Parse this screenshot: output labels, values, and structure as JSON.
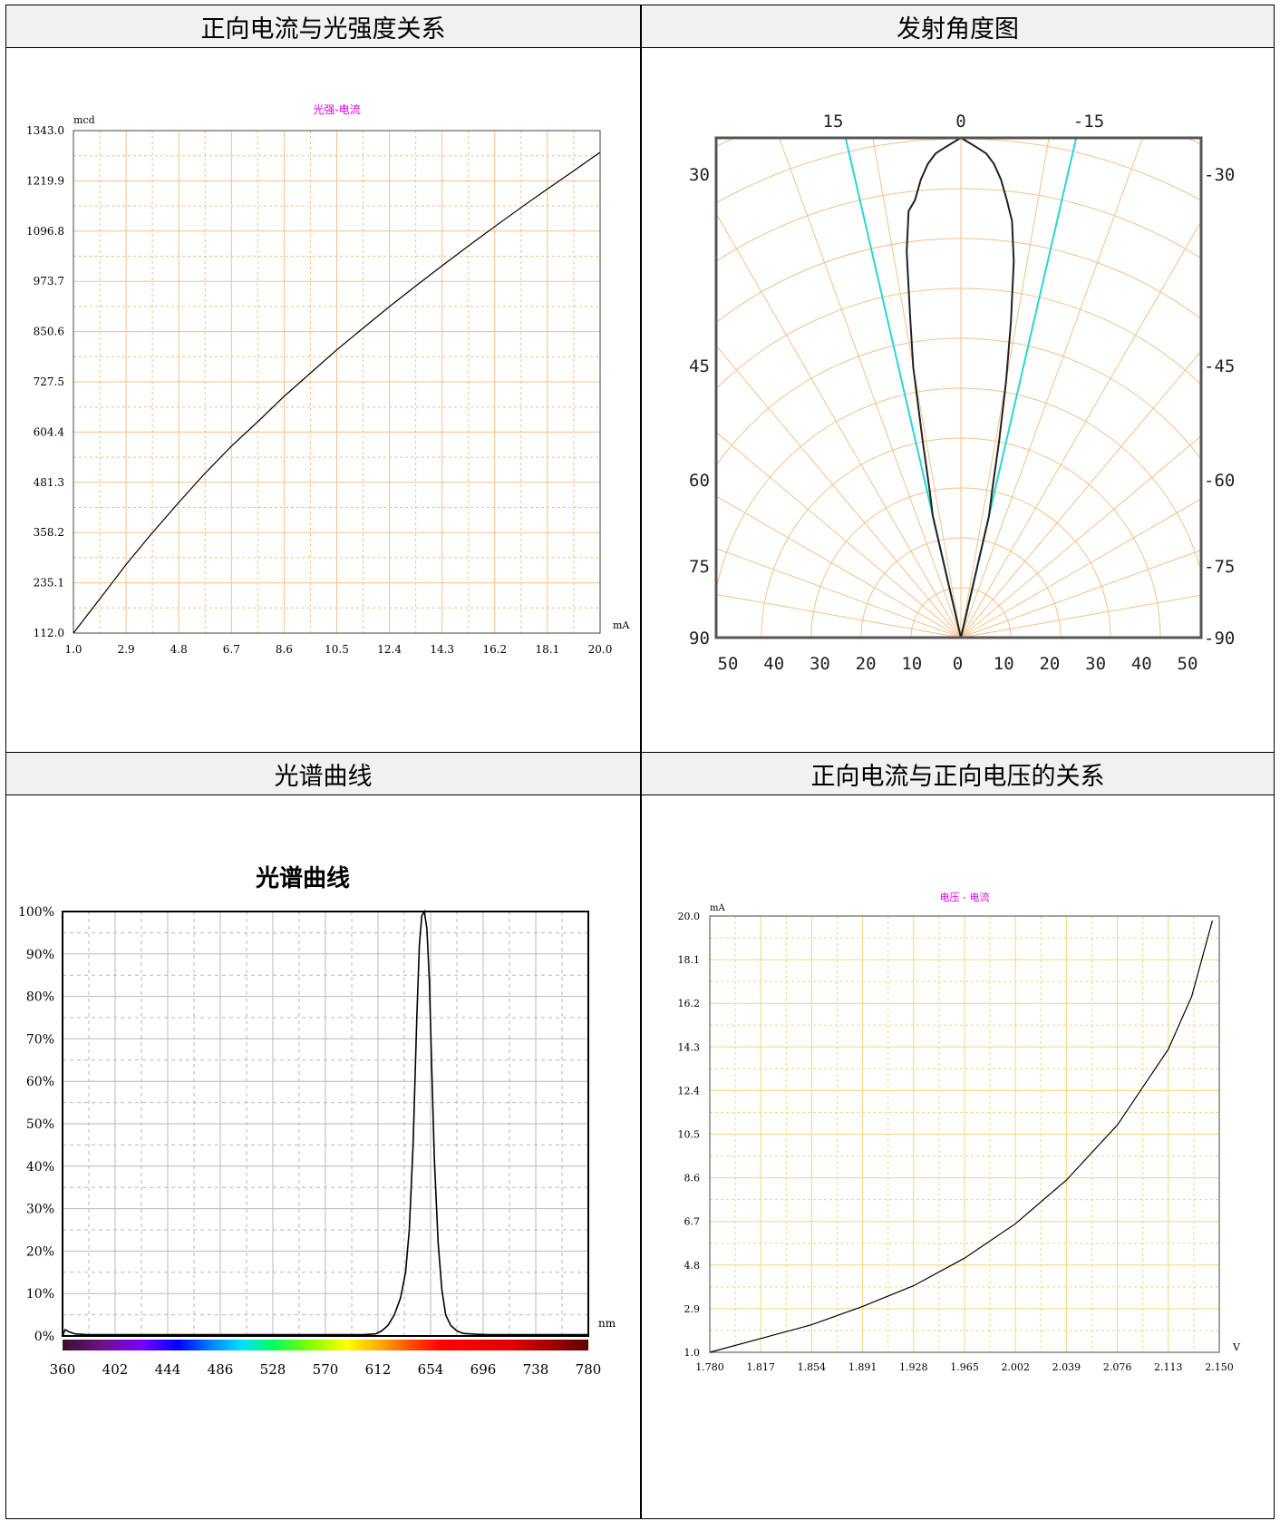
{
  "panels": {
    "top_left": "正向电流与光强度关系",
    "top_right": "发射角度图",
    "bottom_left": "光谱曲线",
    "bottom_right": "正向电流与正向电压的关系"
  },
  "colors": {
    "grid_orange": "#f5c08a",
    "grid_yellow": "#f2d77c",
    "grid_gray": "#b9b9b9",
    "legend_magenta": "#e000e0",
    "cyan": "#26d6d6"
  },
  "chart_data": [
    {
      "type": "line",
      "legend": "光强-电流",
      "ylabel": "mcd",
      "xlabel": "mA",
      "x_ticks": [
        "1.0",
        "2.9",
        "4.8",
        "6.7",
        "8.6",
        "10.5",
        "12.4",
        "14.3",
        "16.2",
        "18.1",
        "20.0"
      ],
      "y_ticks": [
        "112.0",
        "235.1",
        "358.2",
        "481.3",
        "604.4",
        "727.5",
        "850.6",
        "973.7",
        "1096.8",
        "1219.9",
        "1343.0"
      ],
      "xlim": [
        1.0,
        20.0
      ],
      "ylim": [
        112.0,
        1343.0
      ],
      "series": [
        {
          "x": [
            1.0,
            2.0,
            2.9,
            3.8,
            4.8,
            5.7,
            6.7,
            7.7,
            8.6,
            9.6,
            10.5,
            11.5,
            12.4,
            13.4,
            14.3,
            15.3,
            16.2,
            17.2,
            18.1,
            19.1,
            20.0
          ],
          "y": [
            112,
            200,
            280,
            354,
            432,
            500,
            570,
            633,
            692,
            752,
            806,
            862,
            912,
            965,
            1012,
            1063,
            1108,
            1157,
            1200,
            1247,
            1290
          ]
        }
      ]
    },
    {
      "type": "polar",
      "top_ticks": [
        "15",
        "0",
        "-15"
      ],
      "left_ticks": [
        "30",
        "45",
        "60",
        "75",
        "90"
      ],
      "right_ticks": [
        "-30",
        "-45",
        "-60",
        "-75",
        "-90"
      ],
      "bottom_ticks": [
        "50",
        "40",
        "30",
        "20",
        "10",
        "0",
        "10",
        "20",
        "30",
        "40",
        "50"
      ],
      "half_angle_deg": 13,
      "pattern": {
        "angle_deg": [
          -13,
          -12,
          -11,
          -10,
          -9,
          -8,
          -7,
          -6,
          -5,
          -4,
          -3,
          -2,
          -1,
          0,
          1,
          2,
          3,
          4,
          5,
          6,
          7,
          8,
          9,
          10,
          11,
          12,
          13
        ],
        "intensity": [
          0.25,
          0.3,
          0.4,
          0.55,
          0.65,
          0.78,
          0.86,
          0.88,
          0.92,
          0.95,
          0.97,
          0.98,
          0.99,
          1.0,
          0.99,
          0.98,
          0.97,
          0.95,
          0.92,
          0.88,
          0.84,
          0.76,
          0.64,
          0.52,
          0.4,
          0.3,
          0.25
        ]
      }
    },
    {
      "type": "line",
      "title": "光谱曲线",
      "xlabel": "nm",
      "x_ticks": [
        "360",
        "402",
        "444",
        "486",
        "528",
        "570",
        "612",
        "654",
        "696",
        "738",
        "780"
      ],
      "y_ticks": [
        "0%",
        "10%",
        "20%",
        "30%",
        "40%",
        "50%",
        "60%",
        "70%",
        "80%",
        "90%",
        "100%"
      ],
      "xlim": [
        360,
        780
      ],
      "ylim": [
        0,
        100
      ],
      "series": [
        {
          "x": [
            360,
            362,
            365,
            370,
            380,
            400,
            450,
            500,
            550,
            600,
            610,
            615,
            620,
            625,
            630,
            634,
            637,
            640,
            643,
            645,
            647,
            649,
            651,
            653,
            655,
            657,
            660,
            663,
            666,
            670,
            675,
            680,
            690,
            700,
            750,
            780
          ],
          "y": [
            0,
            1.5,
            1,
            0.5,
            0.3,
            0.3,
            0.3,
            0.3,
            0.3,
            0.3,
            0.5,
            1.2,
            2.5,
            5,
            9,
            15,
            25,
            45,
            75,
            92,
            99,
            100,
            96,
            84,
            62,
            42,
            22,
            11,
            5,
            2.5,
            1.2,
            0.6,
            0.4,
            0.3,
            0.3,
            0.3
          ]
        }
      ]
    },
    {
      "type": "line",
      "legend": "电压 - 电流",
      "ylabel": "mA",
      "xlabel": "V",
      "x_ticks": [
        "1.780",
        "1.817",
        "1.854",
        "1.891",
        "1.928",
        "1.965",
        "2.002",
        "2.039",
        "2.076",
        "2.113",
        "2.150"
      ],
      "y_ticks": [
        "1.0",
        "2.9",
        "4.8",
        "6.7",
        "8.6",
        "10.5",
        "12.4",
        "14.3",
        "16.2",
        "18.1",
        "20.0"
      ],
      "xlim": [
        1.78,
        2.15
      ],
      "ylim": [
        1.0,
        20.0
      ],
      "series": [
        {
          "x": [
            1.78,
            1.817,
            1.854,
            1.891,
            1.928,
            1.965,
            2.002,
            2.039,
            2.076,
            2.113,
            2.13,
            2.145
          ],
          "y": [
            1.0,
            1.6,
            2.2,
            3.0,
            3.9,
            5.1,
            6.6,
            8.5,
            10.9,
            14.2,
            16.5,
            19.8
          ]
        }
      ]
    }
  ]
}
